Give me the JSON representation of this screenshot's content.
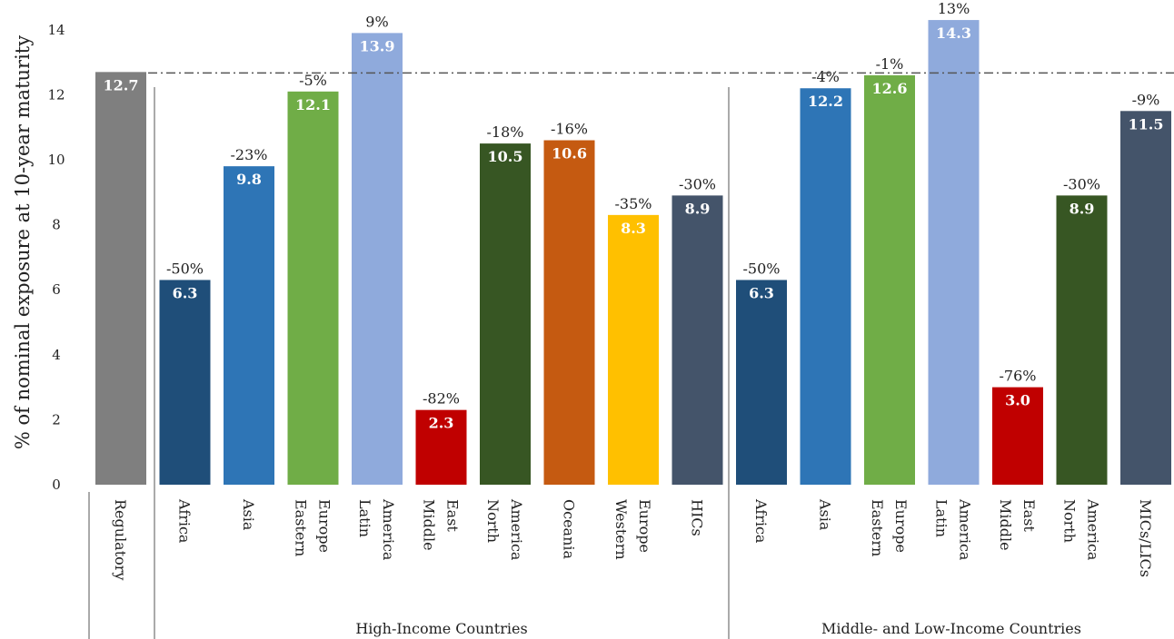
{
  "chart_data": {
    "type": "bar",
    "ylabel": "% of nominal exposure at 10-year maturity",
    "ylim": [
      0,
      14
    ],
    "yticks": [
      0,
      2,
      4,
      6,
      8,
      10,
      12,
      14
    ],
    "reference_line": {
      "value": 12.7,
      "style": "dash-dot"
    },
    "groups": [
      {
        "name": "",
        "categories": [
          "Regulatory"
        ]
      },
      {
        "name": "High-Income Countries",
        "categories": [
          "Africa",
          "Asia",
          "Eastern Europe",
          "Latin America",
          "Middle East",
          "North America",
          "Oceania",
          "Western Europe",
          "HICs"
        ]
      },
      {
        "name": "Middle- and Low-Income Countries",
        "categories": [
          "Africa",
          "Asia",
          "Eastern Europe",
          "Latin America",
          "Middle East",
          "North America",
          "MICs/LICs"
        ]
      }
    ],
    "bars": [
      {
        "label": [
          "Regulatory"
        ],
        "value": 12.7,
        "value_label": "12.7",
        "change": "",
        "color": "#7f7f7f"
      },
      {
        "label": [
          "Africa"
        ],
        "value": 6.3,
        "value_label": "6.3",
        "change": "-50%",
        "color": "#1f4e79"
      },
      {
        "label": [
          "Asia"
        ],
        "value": 9.8,
        "value_label": "9.8",
        "change": "-23%",
        "color": "#2e75b6"
      },
      {
        "label": [
          "Eastern",
          "Europe"
        ],
        "value": 12.1,
        "value_label": "12.1",
        "change": "-5%",
        "color": "#70ad47"
      },
      {
        "label": [
          "Latin",
          "America"
        ],
        "value": 13.9,
        "value_label": "13.9",
        "change": "9%",
        "color": "#8faadc"
      },
      {
        "label": [
          "Middle",
          "East"
        ],
        "value": 2.3,
        "value_label": "2.3",
        "change": "-82%",
        "color": "#c00000"
      },
      {
        "label": [
          "North",
          "America"
        ],
        "value": 10.5,
        "value_label": "10.5",
        "change": "-18%",
        "color": "#375623"
      },
      {
        "label": [
          "Oceania"
        ],
        "value": 10.6,
        "value_label": "10.6",
        "change": "-16%",
        "color": "#c55a11"
      },
      {
        "label": [
          "Western",
          "Europe"
        ],
        "value": 8.3,
        "value_label": "8.3",
        "change": "-35%",
        "color": "#ffc000"
      },
      {
        "label": [
          "HICs"
        ],
        "value": 8.9,
        "value_label": "8.9",
        "change": "-30%",
        "color": "#44546a"
      },
      {
        "label": [
          "Africa"
        ],
        "value": 6.3,
        "value_label": "6.3",
        "change": "-50%",
        "color": "#1f4e79"
      },
      {
        "label": [
          "Asia"
        ],
        "value": 12.2,
        "value_label": "12.2",
        "change": "-4%",
        "color": "#2e75b6"
      },
      {
        "label": [
          "Eastern",
          "Europe"
        ],
        "value": 12.6,
        "value_label": "12.6",
        "change": "-1%",
        "color": "#70ad47"
      },
      {
        "label": [
          "Latin",
          "America"
        ],
        "value": 14.3,
        "value_label": "14.3",
        "change": "13%",
        "color": "#8faadc"
      },
      {
        "label": [
          "Middle",
          "East"
        ],
        "value": 3.0,
        "value_label": "3.0",
        "change": "-76%",
        "color": "#c00000"
      },
      {
        "label": [
          "North",
          "America"
        ],
        "value": 8.9,
        "value_label": "8.9",
        "change": "-30%",
        "color": "#375623"
      },
      {
        "label": [
          "MICs/LICs"
        ],
        "value": 11.5,
        "value_label": "11.5",
        "change": "-9%",
        "color": "#44546a"
      }
    ]
  }
}
